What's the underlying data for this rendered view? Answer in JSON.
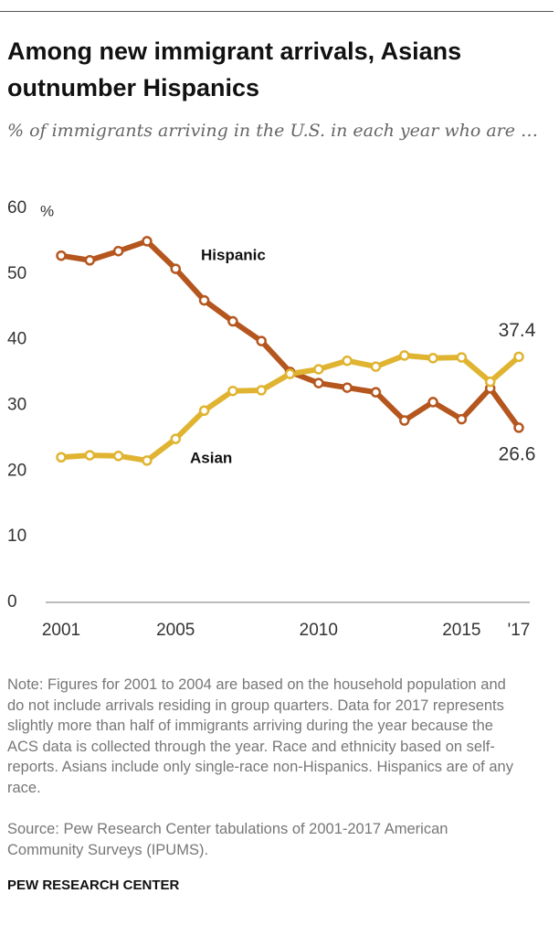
{
  "chart_data": {
    "type": "line",
    "title": "Among new immigrant arrivals, Asians outnumber Hispanics",
    "subtitle": "% of immigrants arriving in the U.S. in each year who are …",
    "y_unit": "%",
    "x": [
      2001,
      2002,
      2003,
      2004,
      2005,
      2006,
      2007,
      2008,
      2009,
      2010,
      2011,
      2012,
      2013,
      2014,
      2015,
      2016,
      2017
    ],
    "series": [
      {
        "name": "Hispanic",
        "color": "#b5561e",
        "values": [
          52.8,
          52.1,
          53.5,
          55.0,
          50.8,
          46.0,
          42.8,
          39.8,
          35.1,
          33.4,
          32.7,
          32.0,
          27.7,
          30.5,
          27.9,
          32.6,
          26.6
        ]
      },
      {
        "name": "Asian",
        "color": "#e0b431",
        "values": [
          22.1,
          22.4,
          22.3,
          21.6,
          24.9,
          29.2,
          32.2,
          32.3,
          34.8,
          35.5,
          36.8,
          35.9,
          37.6,
          37.2,
          37.3,
          33.6,
          37.4
        ]
      }
    ],
    "label_last": true,
    "xlim": [
      2001,
      2017
    ],
    "xticks": [
      2001,
      2005,
      2010,
      2015,
      {
        "value": 2017,
        "label": "'17"
      }
    ],
    "ylim": [
      0,
      60
    ],
    "yticks": [
      0,
      10,
      20,
      30,
      40,
      50,
      60
    ],
    "note": "Note: Figures for 2001 to 2004 are based on the household population and do not include arrivals residing in group quarters. Data for 2017 represents slightly more than half of immigrants arriving during the year because the ACS data is collected through the year. Race and ethnicity based on self-reports. Asians include only single-race non-Hispanics. Hispanics are of any race.",
    "source": "Source: Pew Research Center tabulations of 2001-2017 American Community Surveys (IPUMS).",
    "credit": "PEW RESEARCH CENTER"
  }
}
